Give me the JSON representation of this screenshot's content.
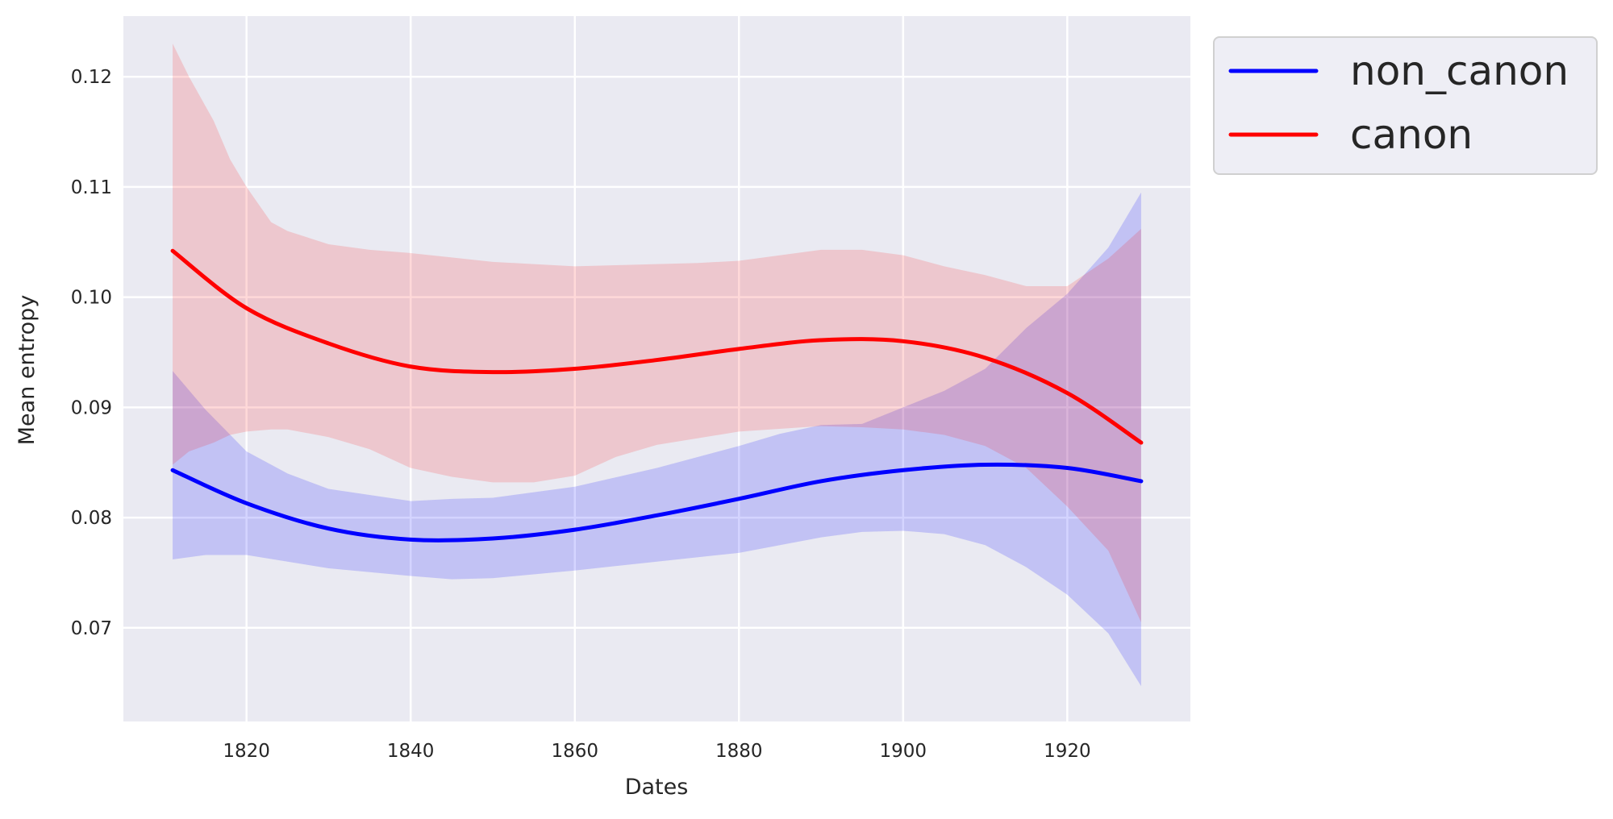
{
  "chart_data": {
    "type": "line",
    "title": "",
    "xlabel": "Dates",
    "ylabel": "Mean entropy",
    "xlim": [
      1805,
      1935
    ],
    "ylim": [
      0.0615,
      0.1255
    ],
    "xticks": [
      1820,
      1840,
      1860,
      1880,
      1900,
      1920
    ],
    "xtick_labels": [
      "1820",
      "1840",
      "1860",
      "1880",
      "1900",
      "1920"
    ],
    "yticks": [
      0.07,
      0.08,
      0.09,
      0.1,
      0.11,
      0.12
    ],
    "ytick_labels": [
      "0.07",
      "0.08",
      "0.09",
      "0.10",
      "0.11",
      "0.12"
    ],
    "grid": true,
    "background": "#eaeaf2",
    "legend_position": "outside-top-right",
    "series": [
      {
        "name": "non_canon",
        "color": "#0000ff",
        "x": [
          1811,
          1820,
          1830,
          1840,
          1850,
          1860,
          1870,
          1880,
          1890,
          1900,
          1910,
          1920,
          1929
        ],
        "y": [
          0.0843,
          0.0813,
          0.079,
          0.078,
          0.0781,
          0.0789,
          0.0802,
          0.0817,
          0.0833,
          0.0843,
          0.0848,
          0.0845,
          0.0833
        ],
        "band_x": [
          1811,
          1815,
          1820,
          1825,
          1830,
          1840,
          1845,
          1850,
          1860,
          1870,
          1880,
          1885,
          1890,
          1895,
          1900,
          1905,
          1910,
          1915,
          1920,
          1925,
          1929
        ],
        "band_upper": [
          0.0933,
          0.0898,
          0.086,
          0.084,
          0.0826,
          0.0815,
          0.0817,
          0.0818,
          0.0828,
          0.0845,
          0.0865,
          0.0876,
          0.0884,
          0.0885,
          0.09,
          0.0915,
          0.0935,
          0.0972,
          0.1003,
          0.1045,
          0.1095
        ],
        "band_lower": [
          0.0762,
          0.0766,
          0.0766,
          0.076,
          0.0754,
          0.0747,
          0.0744,
          0.0745,
          0.0752,
          0.076,
          0.0768,
          0.0775,
          0.0782,
          0.0787,
          0.0788,
          0.0785,
          0.0775,
          0.0755,
          0.073,
          0.0695,
          0.0647
        ]
      },
      {
        "name": "canon",
        "color": "#ff0000",
        "x": [
          1811,
          1820,
          1830,
          1840,
          1850,
          1860,
          1870,
          1880,
          1890,
          1900,
          1910,
          1920,
          1929
        ],
        "y": [
          0.1042,
          0.099,
          0.0958,
          0.0937,
          0.0932,
          0.0935,
          0.0943,
          0.0953,
          0.0961,
          0.096,
          0.0945,
          0.0913,
          0.0868
        ],
        "band_x": [
          1811,
          1813,
          1816,
          1818,
          1820,
          1823,
          1825,
          1830,
          1835,
          1840,
          1845,
          1850,
          1855,
          1860,
          1865,
          1870,
          1875,
          1880,
          1890,
          1895,
          1900,
          1905,
          1910,
          1915,
          1920,
          1925,
          1929
        ],
        "band_upper": [
          0.123,
          0.12,
          0.116,
          0.1125,
          0.11,
          0.1068,
          0.106,
          0.1048,
          0.1043,
          0.104,
          0.1036,
          0.1032,
          0.103,
          0.1028,
          0.1029,
          0.103,
          0.1031,
          0.1033,
          0.1043,
          0.1043,
          0.1038,
          0.1028,
          0.102,
          0.101,
          0.101,
          0.1035,
          0.1062
        ],
        "band_lower": [
          0.0848,
          0.086,
          0.0868,
          0.0875,
          0.0878,
          0.088,
          0.088,
          0.0873,
          0.0862,
          0.0845,
          0.0837,
          0.0832,
          0.0832,
          0.0838,
          0.0855,
          0.0866,
          0.0872,
          0.0878,
          0.0883,
          0.0882,
          0.088,
          0.0875,
          0.0865,
          0.0845,
          0.081,
          0.077,
          0.0705
        ]
      }
    ]
  }
}
